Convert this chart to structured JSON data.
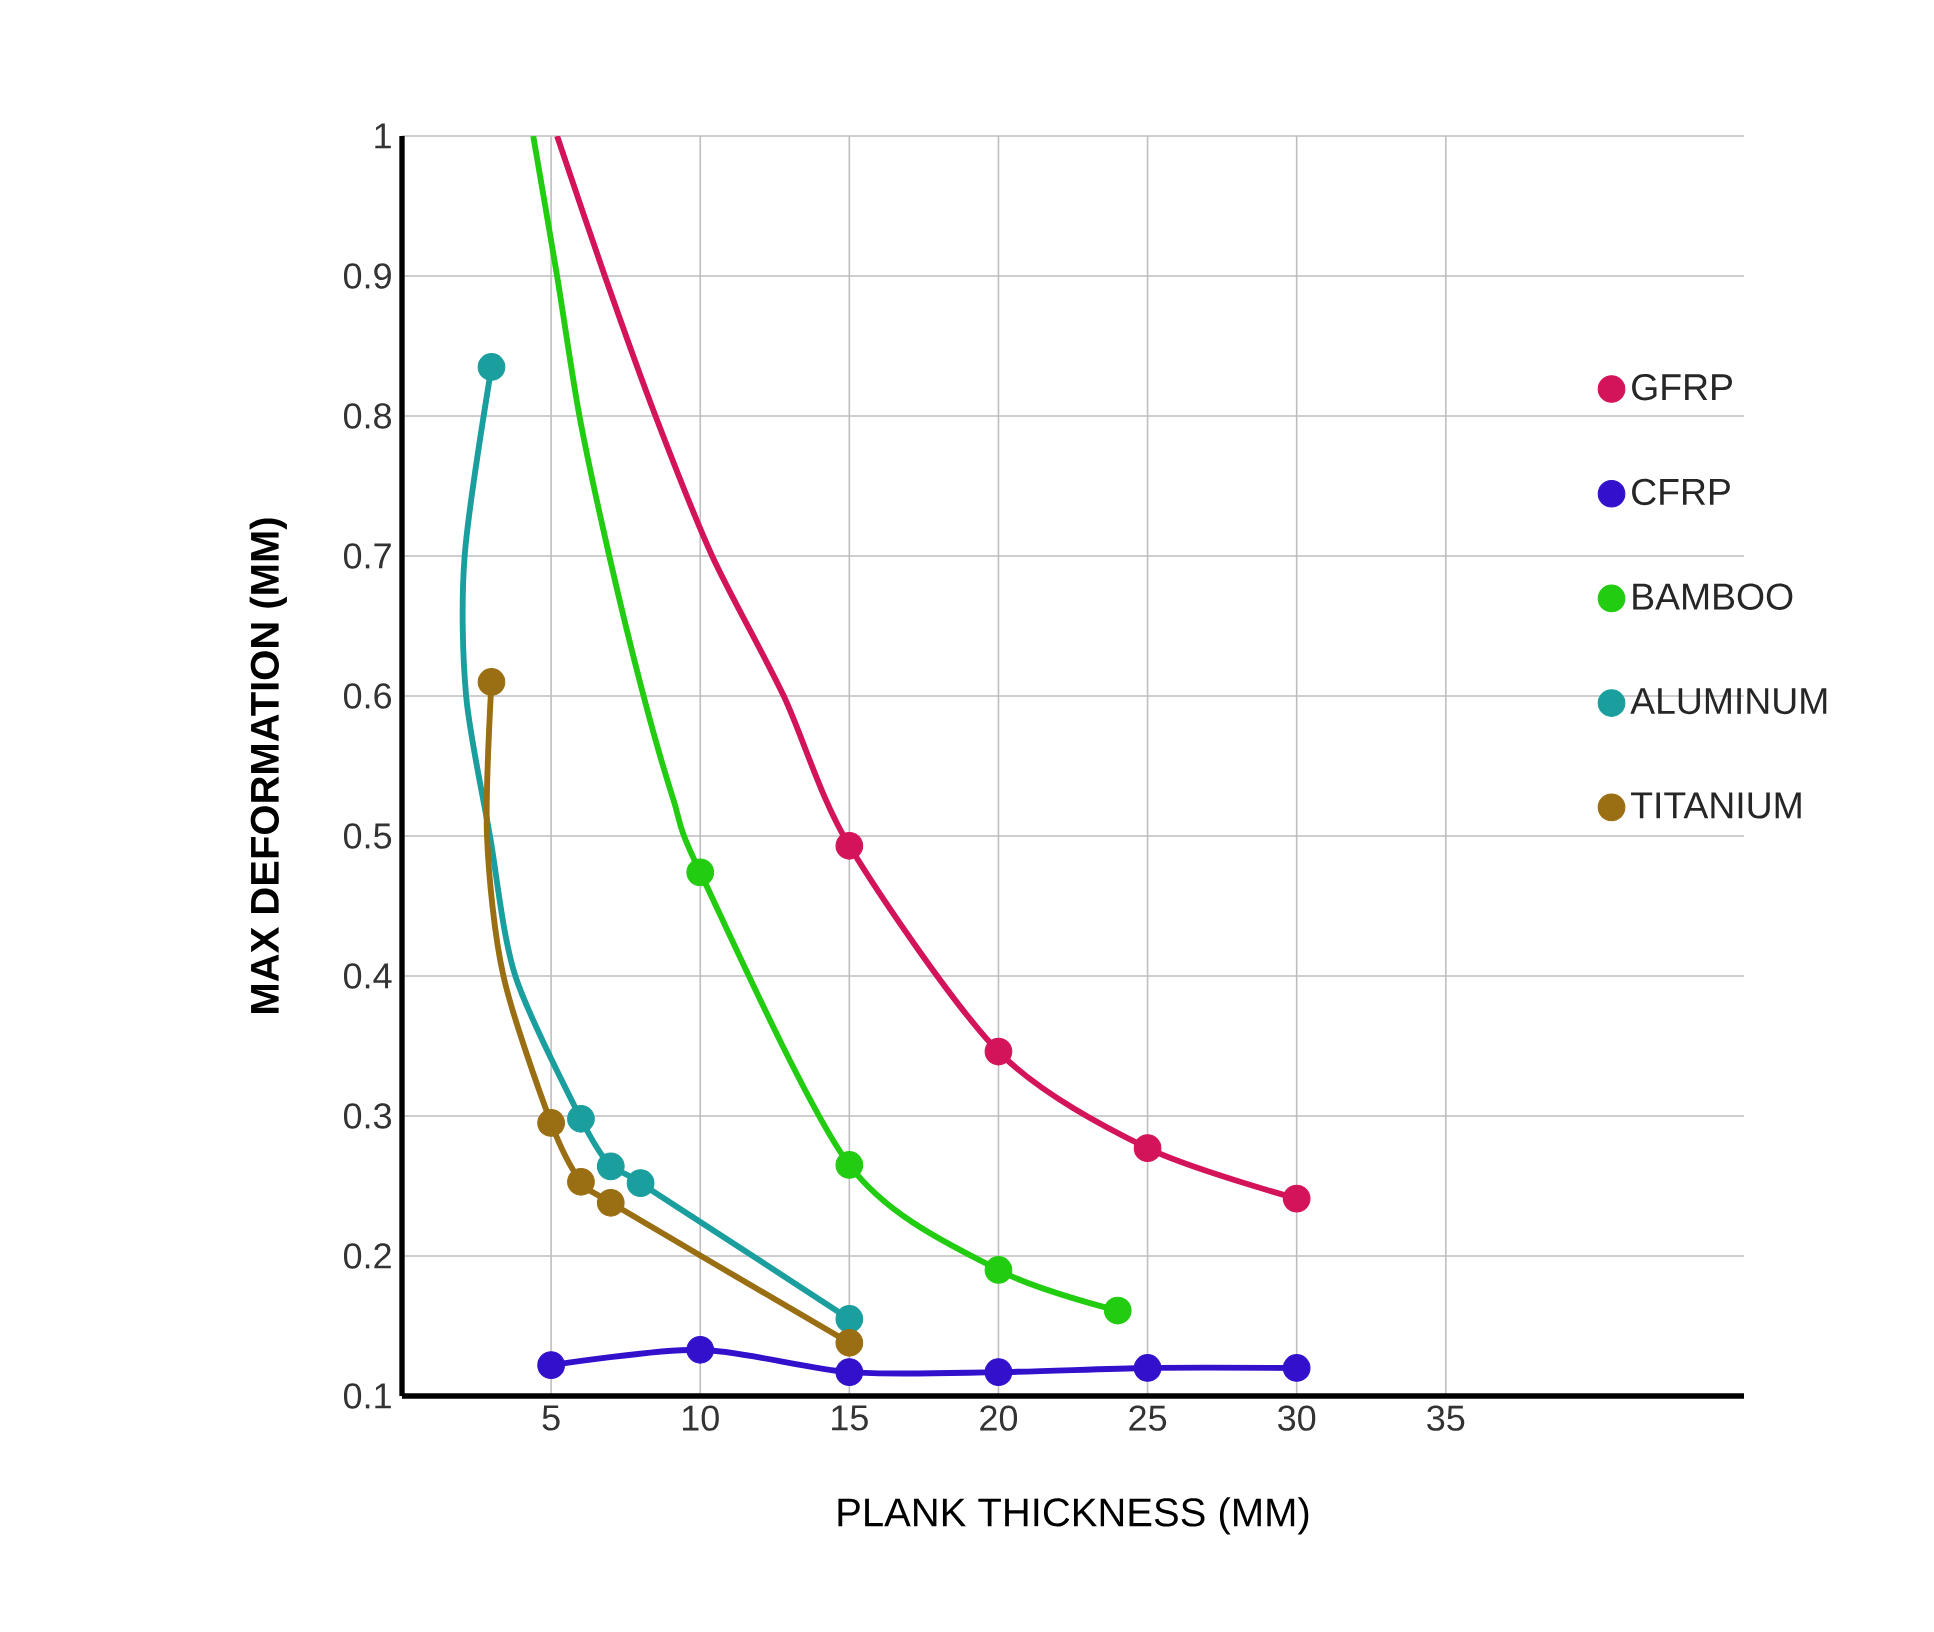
{
  "chart_data": {
    "type": "scatter",
    "xlabel": "PLANK THICKNESS (MM)",
    "ylabel": "MAX DEFORMATION (MM)",
    "xlim": [
      0,
      45
    ],
    "ylim": [
      0.1,
      1
    ],
    "xticks": [
      5,
      10,
      15,
      20,
      25,
      30,
      35
    ],
    "yticks": [
      0.1,
      0.2,
      0.3,
      0.4,
      0.5,
      0.6,
      0.7,
      0.8,
      0.9,
      1
    ],
    "grid": true,
    "legend": "right",
    "series": [
      {
        "type": "line",
        "color": "#d4145a",
        "marker": "none",
        "line_style": "solid",
        "x": [
          5.2,
          6.8,
          8.5,
          10.4,
          12.8,
          15,
          20,
          25,
          30
        ],
        "values": [
          1.0,
          0.9,
          0.8,
          0.7,
          0.6,
          0.493,
          0.346,
          0.277,
          0.241
        ]
      },
      {
        "type": "line",
        "color": "#3311cc",
        "marker": "none",
        "line_style": "solid",
        "x": [
          5,
          10,
          15,
          20,
          25,
          30
        ],
        "values": [
          0.122,
          0.133,
          0.117,
          0.117,
          0.12,
          0.12
        ]
      },
      {
        "type": "line",
        "color": "#22cc11",
        "marker": "none",
        "line_style": "solid",
        "x": [
          4.4,
          5.2,
          5.95,
          6.95,
          8.1,
          9.1,
          10,
          15,
          20,
          24
        ],
        "values": [
          1.0,
          0.9,
          0.8,
          0.7,
          0.6,
          0.526,
          0.474,
          0.265,
          0.19,
          0.161
        ]
      },
      {
        "type": "line",
        "color": "#1a9e9e",
        "marker": "none",
        "line_style": "solid",
        "x": [
          3,
          2.1,
          2.15,
          2.95,
          3.8,
          6,
          7,
          8,
          15
        ],
        "values": [
          0.835,
          0.7,
          0.6,
          0.5,
          0.4,
          0.298,
          0.264,
          0.252,
          0.155
        ]
      },
      {
        "type": "line",
        "color": "#9a6e12",
        "marker": "none",
        "line_style": "solid",
        "x": [
          3,
          2.85,
          3.4,
          5,
          6,
          7,
          15
        ],
        "values": [
          0.61,
          0.5,
          0.4,
          0.295,
          0.253,
          0.238,
          0.138
        ]
      },
      {
        "name": "GFRP",
        "color": "#d4145a",
        "marker": "circle",
        "x": [
          15,
          20,
          25,
          30
        ],
        "values": [
          0.493,
          0.346,
          0.277,
          0.241
        ]
      },
      {
        "name": "CFRP",
        "color": "#3311cc",
        "marker": "circle",
        "x": [
          5,
          10,
          15,
          20,
          25,
          30
        ],
        "values": [
          0.122,
          0.133,
          0.117,
          0.117,
          0.12,
          0.12
        ]
      },
      {
        "name": "BAMBOO",
        "color": "#22cc11",
        "marker": "circle",
        "x": [
          10,
          15,
          20,
          24
        ],
        "values": [
          0.474,
          0.265,
          0.19,
          0.161
        ]
      },
      {
        "name": "ALUMINUM",
        "color": "#1a9e9e",
        "marker": "circle",
        "x": [
          3,
          6,
          7,
          8,
          15
        ],
        "values": [
          0.835,
          0.298,
          0.264,
          0.252,
          0.155
        ]
      },
      {
        "name": "TITANIUM",
        "color": "#9a6e12",
        "marker": "circle",
        "x": [
          3,
          5,
          6,
          7,
          15
        ],
        "values": [
          0.61,
          0.295,
          0.253,
          0.238,
          0.138
        ]
      }
    ]
  }
}
